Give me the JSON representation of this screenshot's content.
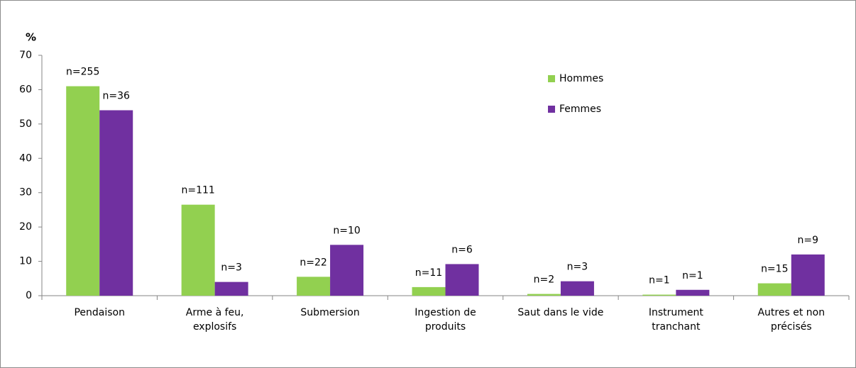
{
  "chart_data": {
    "type": "bar",
    "y_label": "%",
    "categories": [
      "Pendaison",
      "Arme à feu,\nexplosifs",
      "Submersion",
      "Ingestion de\nproduits",
      "Saut dans le vide",
      "Instrument\ntranchant",
      "Autres et non\nprécisés"
    ],
    "series": [
      {
        "name": "Hommes",
        "color": "#92d050",
        "values": [
          61,
          26.5,
          5.5,
          2.5,
          0.5,
          0.3,
          3.6
        ],
        "annotations": [
          "n=255",
          "n=111",
          "n=22",
          "n=11",
          "n=2",
          "n=1",
          "n=15"
        ]
      },
      {
        "name": "Femmes",
        "color": "#7030a0",
        "values": [
          54,
          4,
          14.8,
          9.2,
          4.2,
          1.7,
          12
        ],
        "annotations": [
          "n=36",
          "n=3",
          "n=10",
          "n=6",
          "n=3",
          "n=1",
          "n=9"
        ]
      }
    ],
    "ylim": [
      0,
      70
    ],
    "yticks": [
      0,
      10,
      20,
      30,
      40,
      50,
      60,
      70
    ],
    "grid": false
  }
}
